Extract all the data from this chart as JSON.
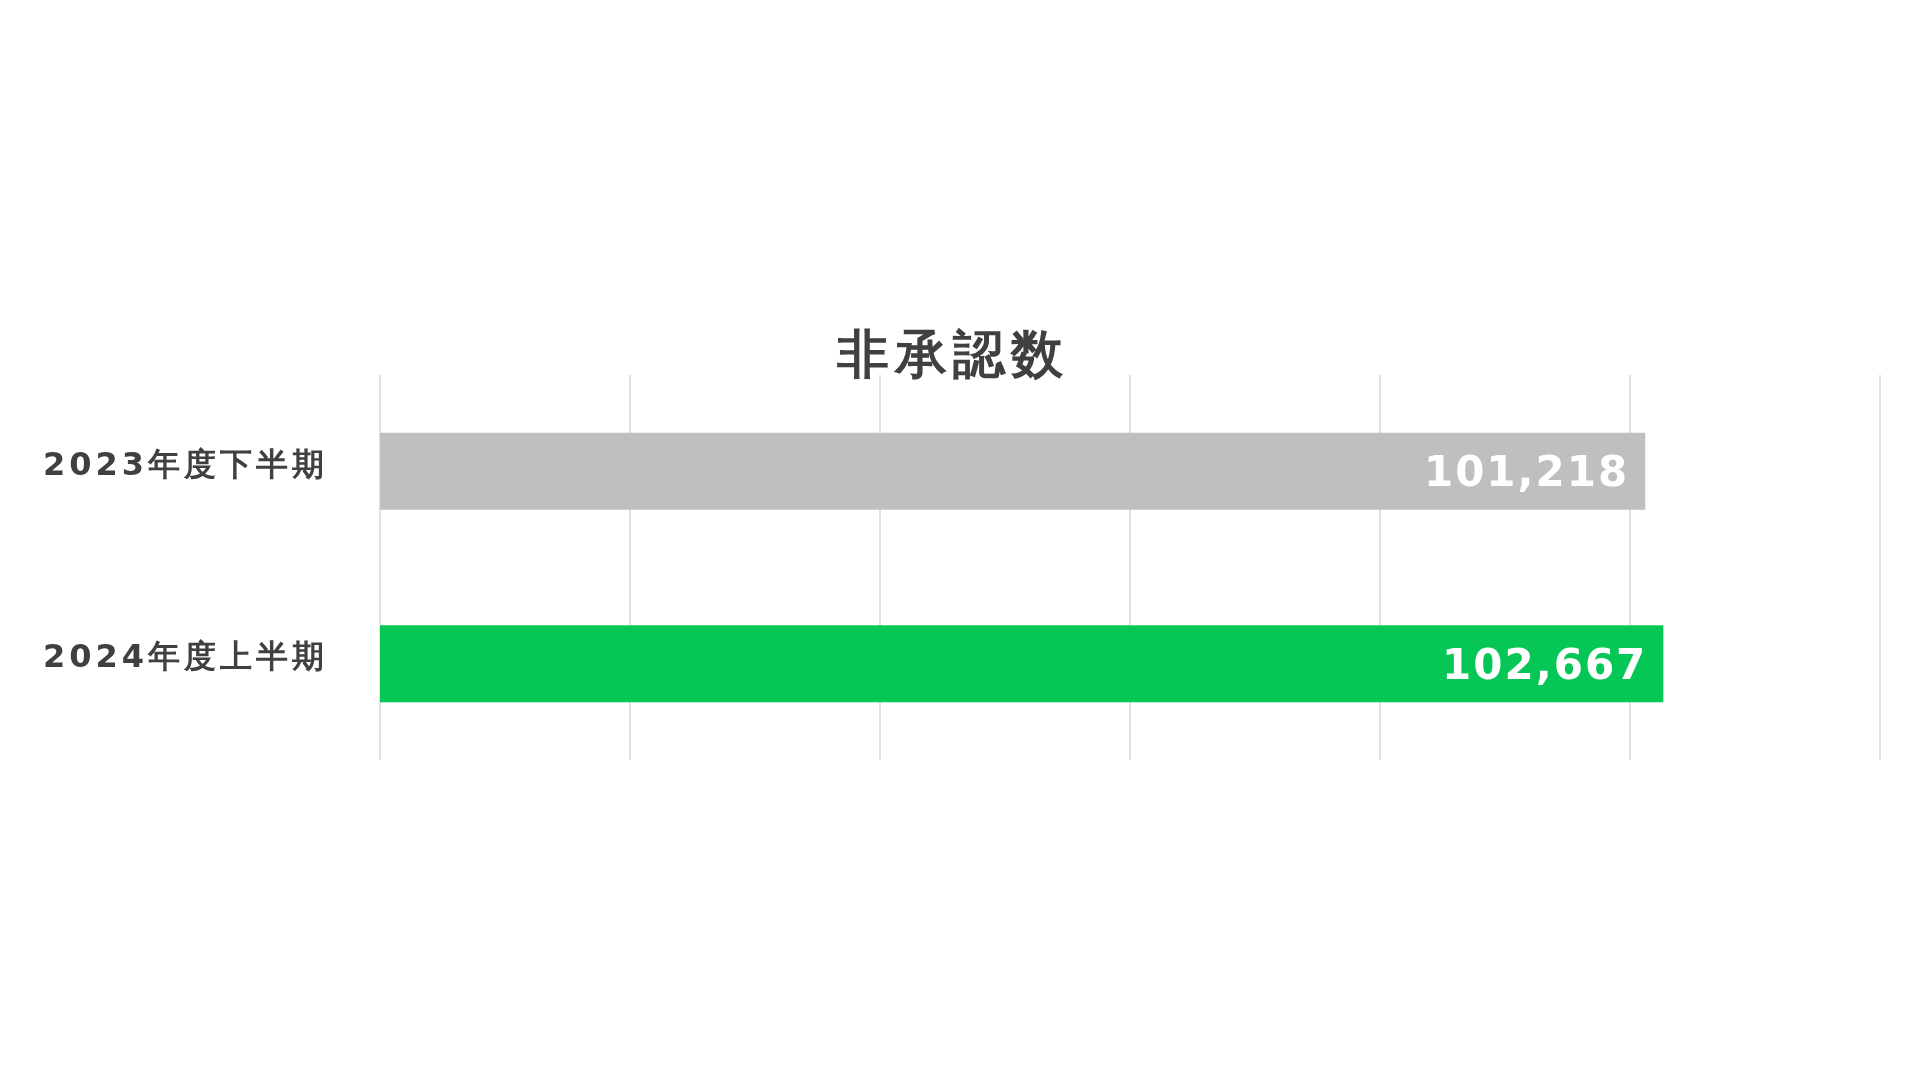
{
  "chart_data": {
    "type": "bar",
    "orientation": "horizontal",
    "title": "非承認数",
    "categories": [
      "2023年度下半期",
      "2024年度上半期"
    ],
    "values": [
      101218,
      102667
    ],
    "colors": [
      "#bfbfbf",
      "#06c755"
    ],
    "value_labels": [
      "101,218",
      "102,667"
    ],
    "grid": "x",
    "tick_labels": "y"
  }
}
